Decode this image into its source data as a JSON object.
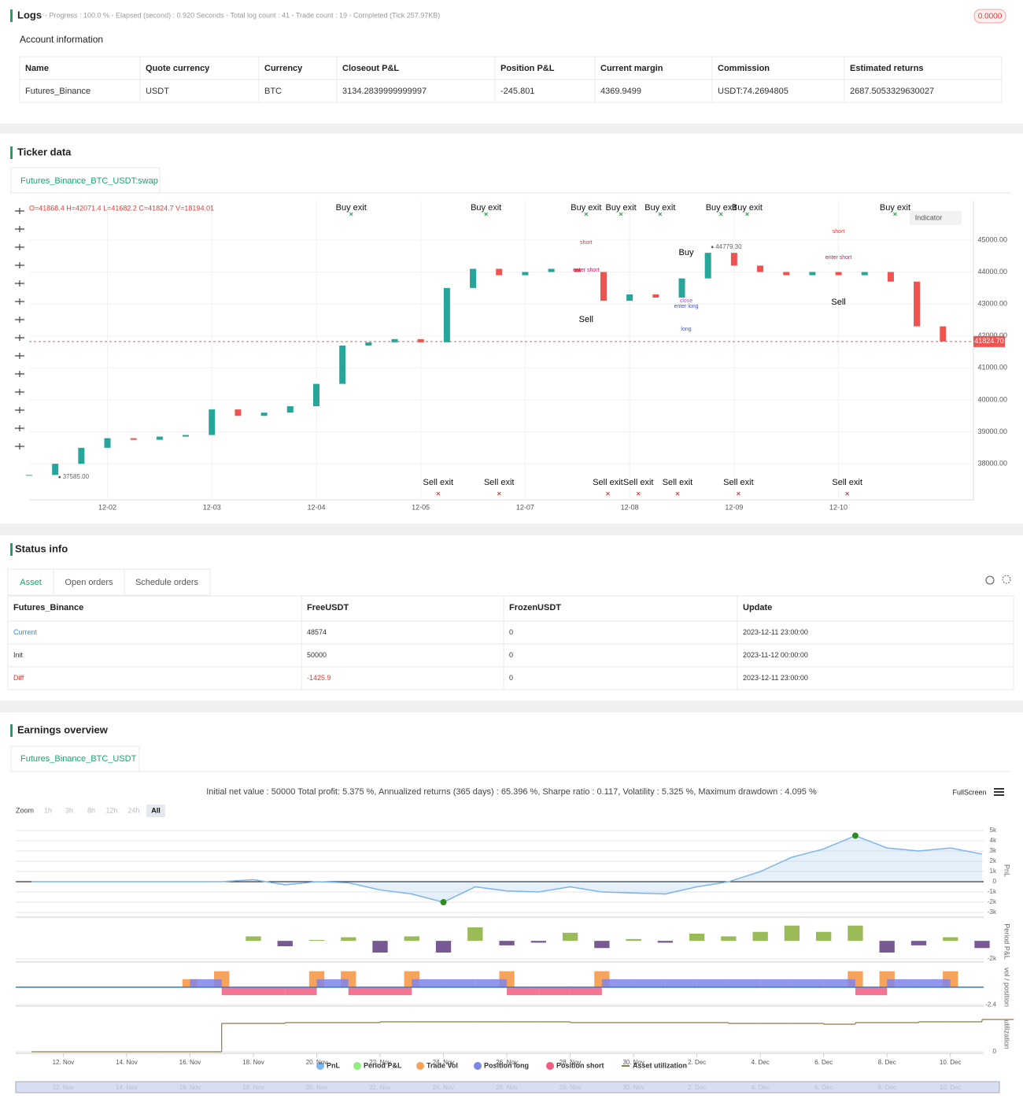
{
  "logs": {
    "title": "Logs",
    "progress": "- Progress : 100.0 % - Elapsed (second) : 0.920 Seconds - Total log count : 41 - Trade count : 19 - Completed (Tick 257.97KB)",
    "badge": "0.0000"
  },
  "account": {
    "title": "Account information",
    "headers": [
      "Name",
      "Quote currency",
      "Currency",
      "Closeout P&L",
      "Position P&L",
      "Current margin",
      "Commission",
      "Estimated returns"
    ],
    "rows": [
      [
        "Futures_Binance",
        "USDT",
        "BTC",
        "3134.2839999999997",
        "-245.801",
        "4369.9499",
        "USDT:74.2694805",
        "2687.5053329630027"
      ]
    ]
  },
  "ticker": {
    "title": "Ticker data",
    "tab": "Futures_Binance_BTC_USDT:swap",
    "ohlc": "O=41868.4 H=42071.4 L=41682.2 C=41824.7 V=18194.01",
    "indicator": "Indicator",
    "chart": {
      "type": "candlestick",
      "x": [
        0,
        6,
        12,
        18,
        24,
        30,
        36,
        42,
        48,
        54,
        60,
        66,
        72,
        78,
        84,
        90,
        96,
        102,
        108,
        114,
        120,
        126,
        132,
        138,
        144,
        150,
        156,
        162,
        168,
        174,
        180,
        186,
        192,
        198,
        204,
        210
      ],
      "close": [
        37650,
        38000,
        38500,
        38800,
        38750,
        38850,
        38900,
        39700,
        39500,
        39600,
        39800,
        40500,
        41700,
        41800,
        41900,
        41800,
        43500,
        44100,
        43900,
        44000,
        44100,
        44000,
        43100,
        43300,
        43200,
        43800,
        44600,
        44200,
        44000,
        43900,
        44000,
        43900,
        44000,
        43700,
        42300,
        41825
      ],
      "up_color": "#26a69a",
      "down_color": "#ef5350",
      "xlim": [
        0,
        217
      ],
      "ylim": [
        36870,
        46230
      ],
      "xticks": [
        {
          "value": 18,
          "label": "12-02"
        },
        {
          "value": 42,
          "label": "12-03"
        },
        {
          "value": 66,
          "label": "12-04"
        },
        {
          "value": 90,
          "label": "12-05"
        },
        {
          "value": 114,
          "label": "12-07"
        },
        {
          "value": 138,
          "label": "12-08"
        },
        {
          "value": 162,
          "label": "12-09"
        },
        {
          "value": 186,
          "label": "12-10"
        }
      ],
      "yticks": [
        {
          "value": 38000,
          "label": "38000.00"
        },
        {
          "value": 39000,
          "label": "39000.00"
        },
        {
          "value": 40000,
          "label": "40000.00"
        },
        {
          "value": 41000,
          "label": "41000.00"
        },
        {
          "value": 42000,
          "label": "42000.00"
        },
        {
          "value": 43000,
          "label": "43000.00"
        },
        {
          "value": 44000,
          "label": "44000.00"
        },
        {
          "value": 45000,
          "label": "45000.00"
        }
      ],
      "last_price": {
        "value": 41824.7,
        "label": "41824.70"
      },
      "high": {
        "x": 157,
        "value": 44779.3,
        "label": "44779.30"
      },
      "low": {
        "x": 7,
        "value": 37585,
        "label": "37585.00"
      },
      "exit_top": {
        "labels": [
          "Buy exit",
          "Buy exit",
          "Buy exit",
          "Buy exit",
          "Buy exit",
          "Buy exit",
          "Buy exit",
          "Buy exit"
        ],
        "x": [
          74,
          105,
          128,
          136,
          145,
          159,
          165,
          199
        ]
      },
      "exit_bottom": {
        "labels": [
          "Sell exit",
          "Sell exit",
          "Sell exit",
          "Sell exit",
          "Sell exit",
          "Sell exit",
          "Sell exit"
        ],
        "x": [
          94,
          108,
          133,
          140,
          149,
          163,
          188
        ]
      },
      "signals": {
        "labels": [
          "Buy",
          "Sell",
          "Sell",
          "short",
          "enter short",
          "short",
          "enter short",
          "close",
          "enter long",
          "long"
        ],
        "x": [
          151,
          128,
          186,
          128,
          128,
          186,
          186,
          151,
          151,
          151
        ],
        "y": [
          44606,
          42510,
          43053,
          44926,
          44063,
          45271,
          44458,
          43100,
          42930,
          42215
        ],
        "colors": [
          "#000000",
          "#000000",
          "#000000",
          "#e53935",
          "#c2185b",
          "#e53935",
          "#c2185b",
          "#b04fd8",
          "#3f51d8",
          "#3f51d8"
        ]
      }
    }
  },
  "status": {
    "title": "Status info",
    "tabs": [
      "Asset",
      "Open orders",
      "Schedule orders"
    ],
    "headers": [
      "Futures_Binance",
      "FreeUSDT",
      "FrozenUSDT",
      "Update"
    ],
    "rows": [
      [
        "Current",
        "48574",
        "0",
        "2023-12-11 23:00:00"
      ],
      [
        "Init",
        "50000",
        "0",
        "2023-11-12 00:00:00"
      ],
      [
        "Diff",
        "-1425.9",
        "0",
        "2023-12-11 23:00:00"
      ]
    ]
  },
  "earnings": {
    "title": "Earnings overview",
    "tab": "Futures_Binance_BTC_USDT",
    "summary": "Initial net value : 50000 Total profit: 5.375 %, Annualized returns (365 days) : 65.396 %, Sharpe ratio : 0.117, Volatility : 5.325 %, Maximum drawdown : 4.095 %",
    "fullscreen": "FullScreen",
    "zoom": {
      "label": "Zoom",
      "buttons": [
        "1h",
        "3h",
        "8h",
        "12h",
        "24h",
        "All"
      ]
    },
    "chart": {
      "type": "line",
      "x": [
        -1,
        0,
        1,
        2,
        3,
        4,
        5,
        6,
        7,
        8,
        9,
        10,
        11,
        12,
        13,
        14,
        15,
        16,
        17,
        18,
        19,
        20,
        21,
        22,
        23,
        24,
        25,
        26,
        27,
        28,
        29
      ],
      "xlim": [
        -1.5,
        29.05
      ],
      "xticks": [
        {
          "value": 0,
          "label": "12. Nov"
        },
        {
          "value": 2,
          "label": "14. Nov"
        },
        {
          "value": 4,
          "label": "16. Nov"
        },
        {
          "value": 6,
          "label": "18. Nov"
        },
        {
          "value": 8,
          "label": "20. Nov"
        },
        {
          "value": 10,
          "label": "22. Nov"
        },
        {
          "value": 12,
          "label": "24. Nov"
        },
        {
          "value": 14,
          "label": "26. Nov"
        },
        {
          "value": 16,
          "label": "28. Nov"
        },
        {
          "value": 18,
          "label": "30. Nov"
        },
        {
          "value": 20,
          "label": "2. Dec"
        },
        {
          "value": 22,
          "label": "4. Dec"
        },
        {
          "value": 24,
          "label": "6. Dec"
        },
        {
          "value": 26,
          "label": "8. Dec"
        },
        {
          "value": 28,
          "label": "10. Dec"
        }
      ],
      "panels": [
        {
          "title": "PnL",
          "ylim": [
            -3460,
            5620
          ],
          "yticks": [
            {
              "value": 5000,
              "label": "5k"
            },
            {
              "value": 4000,
              "label": "4k"
            },
            {
              "value": 3000,
              "label": "3k"
            },
            {
              "value": 2000,
              "label": "2k"
            },
            {
              "value": 1000,
              "label": "1k"
            },
            0,
            {
              "value": -1000,
              "label": "-1k"
            },
            {
              "value": -2000,
              "label": "-2k"
            },
            {
              "value": -3000,
              "label": "-3k"
            }
          ],
          "series": [
            {
              "name": "PnL",
              "type": "area",
              "color": "#7cb5ec",
              "values": [
                0,
                0,
                0,
                0,
                0,
                0,
                0,
                200,
                -300,
                0,
                -100,
                -800,
                -1200,
                -2000,
                -500,
                -900,
                -1000,
                -500,
                -1000,
                -1100,
                -1200,
                -500,
                0,
                1000,
                2400,
                3200,
                4500,
                3300,
                3000,
                3300,
                2700
              ]
            }
          ]
        },
        {
          "title": "Period P&L",
          "ylim": [
            -2350,
            2200
          ],
          "yticks": [
            {
              "value": -2000,
              "label": "-2k"
            }
          ],
          "series": [
            {
              "name": "Period P&L",
              "type": "bar",
              "color": "#90ed7d",
              "up_color": "#9bbb59",
              "down_color": "#775a94",
              "values": [
                null,
                null,
                null,
                null,
                null,
                null,
                null,
                500,
                -600,
                100,
                400,
                -1300,
                500,
                -1300,
                1500,
                -500,
                -200,
                900,
                -800,
                200,
                -200,
                800,
                500,
                1000,
                1700,
                1000,
                1700,
                -1300,
                -500,
                400,
                -800
              ]
            }
          ]
        },
        {
          "title": "vol / position",
          "ylim": [
            -2.6,
            2.6
          ],
          "yticks": [
            -2.4
          ],
          "series": [
            {
              "name": "Trade Vol",
              "type": "bar",
              "color": "#f7a35c",
              "values": [
                null,
                null,
                null,
                null,
                null,
                1.1,
                2.2,
                null,
                null,
                2.2,
                2.2,
                null,
                2.2,
                null,
                null,
                2.2,
                null,
                null,
                2.2,
                null,
                null,
                null,
                null,
                null,
                null,
                null,
                2.2,
                2.2,
                null,
                2.2,
                null
              ]
            },
            {
              "name": "Position long",
              "type": "step",
              "color": "#8085e9",
              "values": [
                null,
                null,
                null,
                null,
                null,
                1.1,
                null,
                null,
                null,
                1.1,
                null,
                null,
                1.1,
                1.1,
                1.1,
                null,
                null,
                null,
                1.1,
                1.1,
                1.1,
                1.1,
                1.1,
                1.1,
                1.1,
                1.1,
                null,
                1.1,
                1.1,
                null,
                null
              ]
            },
            {
              "name": "Position short",
              "type": "step",
              "color": "#f15c80",
              "values": [
                null,
                null,
                null,
                null,
                null,
                null,
                -1.1,
                -1.1,
                -1.1,
                null,
                -1.1,
                -1.1,
                null,
                null,
                null,
                -1.1,
                -1.1,
                -1.1,
                null,
                null,
                null,
                null,
                null,
                null,
                null,
                null,
                -1.1,
                null,
                null,
                null,
                null
              ]
            }
          ]
        },
        {
          "title": "utilization",
          "ylim": [
            -2,
            46
          ],
          "yticks": [
            0
          ],
          "series": [
            {
              "name": "Asset utilization",
              "type": "stepline",
              "color": "#8b7b4e",
              "values": [
                0,
                0,
                0,
                0,
                0,
                0,
                36,
                36,
                37,
                37,
                37,
                38,
                38,
                38,
                38,
                38,
                38,
                37,
                37,
                37,
                37,
                37,
                36,
                36,
                36,
                35,
                37,
                37,
                38,
                38,
                41
              ]
            }
          ]
        }
      ]
    }
  }
}
